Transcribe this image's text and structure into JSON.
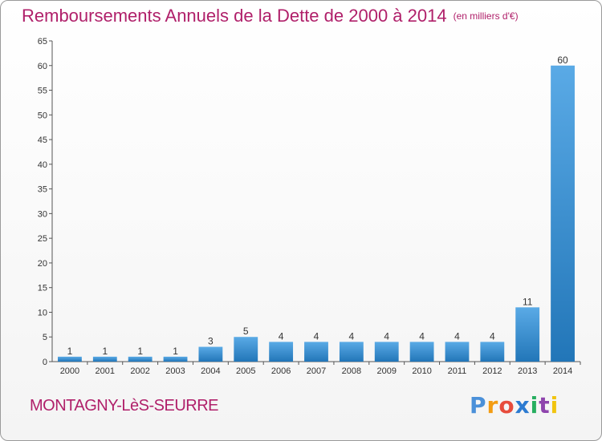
{
  "header": {
    "title": "Remboursements Annuels de la Dette de 2000 à 2014",
    "unit": "(en milliers d'€)"
  },
  "footer": {
    "commune": "MONTAGNY-LèS-SEURRE",
    "logo_text": "Proxiti"
  },
  "colors": {
    "title": "#b0206a",
    "bar_light": "#5aaae6",
    "bar_dark": "#2276b8",
    "grid": "#cccccc"
  },
  "chart_data": {
    "type": "bar",
    "categories": [
      "2000",
      "2001",
      "2002",
      "2003",
      "2004",
      "2005",
      "2006",
      "2007",
      "2008",
      "2009",
      "2010",
      "2011",
      "2012",
      "2013",
      "2014"
    ],
    "values": [
      1,
      1,
      1,
      1,
      3,
      5,
      4,
      4,
      4,
      4,
      4,
      4,
      4,
      11,
      60
    ],
    "title": "Remboursements Annuels de la Dette de 2000 à 2014",
    "xlabel": "",
    "ylabel": "",
    "ylim": [
      0,
      65
    ],
    "yticks": [
      0,
      5,
      10,
      15,
      20,
      25,
      30,
      35,
      40,
      45,
      50,
      55,
      60,
      65
    ],
    "grid": false,
    "data_labels": true
  }
}
